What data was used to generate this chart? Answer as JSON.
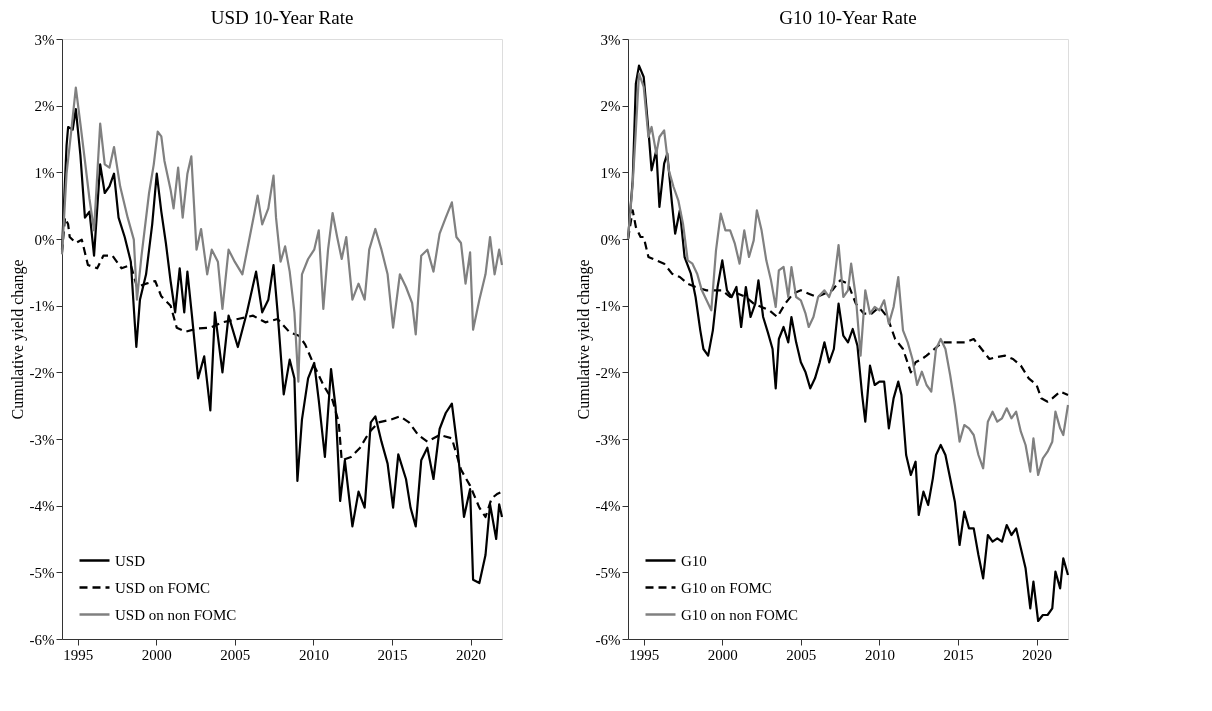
{
  "chart_data": [
    {
      "type": "line",
      "title": "USD 10-Year Rate",
      "ylabel": "Cumulative yield change",
      "xlim": [
        1994,
        2022
      ],
      "xticks": [
        1995,
        2000,
        2005,
        2010,
        2015,
        2020
      ],
      "ylim": [
        -6,
        3
      ],
      "yticks": [
        {
          "value": -6,
          "label": "-6%"
        },
        {
          "value": -5,
          "label": "-5%"
        },
        {
          "value": -4,
          "label": "-4%"
        },
        {
          "value": -3,
          "label": "-3%"
        },
        {
          "value": -2,
          "label": "-2%"
        },
        {
          "value": -1,
          "label": "-1%"
        },
        {
          "value": 0,
          "label": "0%"
        },
        {
          "value": 1,
          "label": "1%"
        },
        {
          "value": 2,
          "label": "2%"
        },
        {
          "value": 3,
          "label": "3%"
        }
      ],
      "grid": false,
      "legend": "bottom left",
      "marker": "none",
      "series": [
        {
          "name": "USD",
          "color": "#000000",
          "line_style": "solid",
          "x": [
            1994.0,
            1994.29,
            1994.39,
            1994.68,
            1994.88,
            1995.17,
            1995.46,
            1995.75,
            1996.04,
            1996.43,
            1996.72,
            1997.02,
            1997.31,
            1997.6,
            1997.99,
            1998.38,
            1998.73,
            1998.96,
            1999.35,
            1999.74,
            2000.03,
            2000.32,
            2000.61,
            2000.91,
            2001.2,
            2001.49,
            2001.78,
            2001.98,
            2002.27,
            2002.66,
            2003.05,
            2003.44,
            2003.73,
            2004.21,
            2004.6,
            2005.19,
            2005.77,
            2006.35,
            2006.74,
            2007.13,
            2007.46,
            2007.72,
            2008.11,
            2008.49,
            2008.79,
            2008.98,
            2009.27,
            2009.66,
            2010.05,
            2010.34,
            2010.73,
            2011.12,
            2011.41,
            2011.7,
            2012.0,
            2012.48,
            2012.87,
            2013.26,
            2013.65,
            2013.94,
            2014.33,
            2014.72,
            2015.07,
            2015.4,
            2015.89,
            2016.18,
            2016.51,
            2016.86,
            2017.25,
            2017.64,
            2018.03,
            2018.42,
            2018.81,
            2019.19,
            2019.58,
            2019.97,
            2020.16,
            2020.56,
            2020.95,
            2021.24,
            2021.63,
            2021.82,
            2022.0
          ],
          "values": [
            -0.16,
            1.4,
            1.68,
            1.64,
            1.95,
            1.26,
            0.32,
            0.41,
            -0.25,
            1.12,
            0.69,
            0.79,
            0.98,
            0.32,
            0.03,
            -0.34,
            -1.62,
            -0.91,
            -0.53,
            0.22,
            0.98,
            0.41,
            -0.06,
            -0.63,
            -1.1,
            -0.44,
            -1.1,
            -0.49,
            -1.15,
            -2.09,
            -1.76,
            -2.57,
            -1.1,
            -2.0,
            -1.15,
            -1.62,
            -1.1,
            -0.49,
            -1.1,
            -0.91,
            -0.39,
            -1.1,
            -2.33,
            -1.81,
            -2.09,
            -3.63,
            -2.71,
            -2.09,
            -1.86,
            -2.42,
            -3.27,
            -1.95,
            -2.52,
            -3.93,
            -3.32,
            -4.31,
            -3.79,
            -4.03,
            -2.75,
            -2.66,
            -3.04,
            -3.37,
            -4.03,
            -3.23,
            -3.6,
            -4.03,
            -4.31,
            -3.32,
            -3.13,
            -3.6,
            -2.85,
            -2.61,
            -2.47,
            -3.18,
            -4.17,
            -3.75,
            -5.11,
            -5.16,
            -4.74,
            -3.98,
            -4.5,
            -3.98,
            -4.17
          ]
        },
        {
          "name": "USD on FOMC",
          "color": "#000000",
          "line_style": "dashed",
          "x": [
            1994.0,
            1994.19,
            1994.39,
            1994.49,
            1994.88,
            1995.26,
            1995.65,
            1996.24,
            1996.63,
            1997.21,
            1997.79,
            1998.38,
            1998.77,
            1999.35,
            1999.93,
            2000.32,
            2000.91,
            2001.3,
            2001.88,
            2002.66,
            2003.44,
            2004.21,
            2005.19,
            2006.16,
            2006.94,
            2007.72,
            2008.49,
            2009.08,
            2009.47,
            2010.05,
            2010.63,
            2011.22,
            2011.61,
            2011.8,
            2012.39,
            2012.97,
            2013.55,
            2014.14,
            2014.91,
            2015.5,
            2016.08,
            2016.67,
            2017.25,
            2018.03,
            2018.81,
            2019.39,
            2019.97,
            2020.56,
            2020.95,
            2021.34,
            2021.72,
            2022.0
          ],
          "values": [
            -0.2,
            0.32,
            0.22,
            0.03,
            -0.06,
            -0.01,
            -0.39,
            -0.44,
            -0.25,
            -0.25,
            -0.44,
            -0.39,
            -0.72,
            -0.67,
            -0.63,
            -0.86,
            -1.0,
            -1.33,
            -1.39,
            -1.34,
            -1.33,
            -1.25,
            -1.2,
            -1.15,
            -1.25,
            -1.2,
            -1.4,
            -1.45,
            -1.58,
            -1.9,
            -2.19,
            -2.42,
            -2.75,
            -3.32,
            -3.27,
            -3.13,
            -2.9,
            -2.75,
            -2.71,
            -2.66,
            -2.75,
            -2.94,
            -3.04,
            -2.94,
            -2.99,
            -3.46,
            -3.7,
            -4.03,
            -4.17,
            -3.89,
            -3.82,
            -3.79
          ]
        },
        {
          "name": "USD on non FOMC",
          "color": "#808080",
          "line_style": "solid",
          "x": [
            1994.0,
            1994.29,
            1994.58,
            1994.88,
            1995.17,
            1995.46,
            1995.75,
            1996.04,
            1996.43,
            1996.72,
            1997.02,
            1997.31,
            1997.7,
            1998.18,
            1998.57,
            1998.77,
            1999.06,
            1999.54,
            1999.84,
            2000.09,
            2000.32,
            2000.52,
            2000.91,
            2001.1,
            2001.39,
            2001.68,
            2001.98,
            2002.23,
            2002.56,
            2002.85,
            2003.24,
            2003.53,
            2003.92,
            2004.21,
            2004.6,
            2004.99,
            2005.48,
            2005.87,
            2006.26,
            2006.45,
            2006.74,
            2007.13,
            2007.46,
            2007.62,
            2007.91,
            2008.2,
            2008.49,
            2008.79,
            2009.04,
            2009.27,
            2009.66,
            2010.05,
            2010.34,
            2010.63,
            2010.93,
            2011.22,
            2011.51,
            2011.8,
            2012.09,
            2012.48,
            2012.87,
            2013.26,
            2013.55,
            2013.94,
            2014.33,
            2014.72,
            2015.07,
            2015.5,
            2015.89,
            2016.28,
            2016.51,
            2016.86,
            2017.25,
            2017.64,
            2018.03,
            2018.42,
            2018.81,
            2019.1,
            2019.39,
            2019.68,
            2019.97,
            2020.16,
            2020.56,
            2020.95,
            2021.24,
            2021.53,
            2021.82,
            2022.0
          ],
          "values": [
            -0.23,
            0.98,
            1.6,
            2.27,
            1.73,
            1.17,
            0.6,
            0.13,
            1.73,
            1.12,
            1.07,
            1.38,
            0.79,
            0.32,
            -0.01,
            -0.91,
            -0.25,
            0.69,
            1.12,
            1.61,
            1.54,
            1.17,
            0.74,
            0.46,
            1.07,
            0.32,
            0.98,
            1.24,
            -0.16,
            0.15,
            -0.53,
            -0.16,
            -0.34,
            -1.05,
            -0.16,
            -0.34,
            -0.53,
            -0.06,
            0.41,
            0.65,
            0.22,
            0.46,
            0.95,
            0.32,
            -0.34,
            -0.11,
            -0.49,
            -1.1,
            -2.14,
            -0.53,
            -0.3,
            -0.16,
            0.13,
            -1.05,
            -0.16,
            0.39,
            0.03,
            -0.3,
            0.03,
            -0.91,
            -0.67,
            -0.91,
            -0.16,
            0.15,
            -0.16,
            -0.53,
            -1.33,
            -0.53,
            -0.72,
            -0.96,
            -1.43,
            -0.25,
            -0.16,
            -0.49,
            0.08,
            0.32,
            0.55,
            0.03,
            -0.06,
            -0.67,
            -0.2,
            -1.36,
            -0.91,
            -0.53,
            0.03,
            -0.53,
            -0.16,
            -0.39
          ]
        }
      ]
    },
    {
      "type": "line",
      "title": "G10 10-Year Rate",
      "ylabel": "Cumulative yield change",
      "xlim": [
        1994,
        2022
      ],
      "xticks": [
        1995,
        2000,
        2005,
        2010,
        2015,
        2020
      ],
      "ylim": [
        -6,
        3
      ],
      "yticks": [
        {
          "value": -6,
          "label": "-6%"
        },
        {
          "value": -5,
          "label": "-5%"
        },
        {
          "value": -4,
          "label": "-4%"
        },
        {
          "value": -3,
          "label": "-3%"
        },
        {
          "value": -2,
          "label": "-2%"
        },
        {
          "value": -1,
          "label": "-1%"
        },
        {
          "value": 0,
          "label": "0%"
        },
        {
          "value": 1,
          "label": "1%"
        },
        {
          "value": 2,
          "label": "2%"
        },
        {
          "value": 3,
          "label": "3%"
        }
      ],
      "grid": false,
      "legend": "bottom left",
      "marker": "none",
      "series": [
        {
          "name": "G10",
          "color": "#000000",
          "line_style": "solid",
          "x": [
            1994.0,
            1994.3,
            1994.5,
            1994.7,
            1995.0,
            1995.3,
            1995.5,
            1995.8,
            1996.0,
            1996.3,
            1996.5,
            1996.8,
            1997.0,
            1997.3,
            1997.6,
            1998.0,
            1998.3,
            1998.6,
            1998.8,
            1999.1,
            1999.4,
            1999.7,
            2000.0,
            2000.3,
            2000.6,
            2000.9,
            2001.2,
            2001.5,
            2001.8,
            2002.1,
            2002.3,
            2002.6,
            2002.9,
            2003.2,
            2003.4,
            2003.6,
            2003.9,
            2004.2,
            2004.4,
            2004.7,
            2005.0,
            2005.3,
            2005.6,
            2005.9,
            2006.2,
            2006.5,
            2006.8,
            2007.1,
            2007.4,
            2007.7,
            2008.0,
            2008.3,
            2008.6,
            2008.9,
            2009.1,
            2009.4,
            2009.7,
            2010.0,
            2010.3,
            2010.6,
            2010.9,
            2011.2,
            2011.4,
            2011.7,
            2012.0,
            2012.3,
            2012.5,
            2012.8,
            2013.1,
            2013.4,
            2013.6,
            2013.9,
            2014.2,
            2014.5,
            2014.8,
            2015.1,
            2015.4,
            2015.7,
            2016.0,
            2016.3,
            2016.6,
            2016.9,
            2017.2,
            2017.5,
            2017.8,
            2018.1,
            2018.4,
            2018.7,
            2019.0,
            2019.3,
            2019.6,
            2019.8,
            2020.1,
            2020.4,
            2020.7,
            2021.0,
            2021.2,
            2021.5,
            2021.7,
            2022.0
          ],
          "values": [
            0.0,
            0.88,
            2.33,
            2.6,
            2.43,
            1.63,
            1.03,
            1.33,
            0.48,
            1.13,
            1.28,
            0.53,
            0.08,
            0.43,
            -0.27,
            -0.52,
            -0.87,
            -1.37,
            -1.65,
            -1.75,
            -1.37,
            -0.72,
            -0.32,
            -0.77,
            -0.87,
            -0.72,
            -1.32,
            -0.72,
            -1.17,
            -0.97,
            -0.62,
            -1.17,
            -1.4,
            -1.65,
            -2.24,
            -1.5,
            -1.32,
            -1.55,
            -1.17,
            -1.55,
            -1.85,
            -2.0,
            -2.24,
            -2.09,
            -1.85,
            -1.55,
            -1.85,
            -1.65,
            -0.97,
            -1.45,
            -1.55,
            -1.35,
            -1.6,
            -2.34,
            -2.74,
            -1.9,
            -2.19,
            -2.14,
            -2.14,
            -2.84,
            -2.39,
            -2.14,
            -2.34,
            -3.24,
            -3.54,
            -3.34,
            -4.14,
            -3.79,
            -3.99,
            -3.59,
            -3.24,
            -3.09,
            -3.24,
            -3.59,
            -3.94,
            -4.59,
            -4.09,
            -4.34,
            -4.34,
            -4.74,
            -5.09,
            -4.44,
            -4.54,
            -4.49,
            -4.54,
            -4.29,
            -4.44,
            -4.34,
            -4.64,
            -4.94,
            -5.54,
            -5.14,
            -5.73,
            -5.64,
            -5.64,
            -5.54,
            -4.99,
            -5.24,
            -4.79,
            -5.04
          ]
        },
        {
          "name": "G10 on FOMC",
          "color": "#000000",
          "line_style": "dashed",
          "x": [
            1994.0,
            1994.3,
            1994.5,
            1994.8,
            1995.0,
            1995.3,
            1995.8,
            1996.3,
            1996.8,
            1997.3,
            1997.8,
            1998.3,
            1999.0,
            1999.5,
            2000.0,
            2000.5,
            2001.0,
            2001.5,
            2002.0,
            2002.5,
            2003.0,
            2003.5,
            2004.0,
            2004.5,
            2005.0,
            2005.5,
            2006.0,
            2006.5,
            2007.0,
            2007.5,
            2008.0,
            2008.5,
            2009.0,
            2009.5,
            2010.0,
            2010.5,
            2011.0,
            2011.5,
            2012.0,
            2012.3,
            2012.7,
            2013.0,
            2013.5,
            2014.0,
            2014.5,
            2015.0,
            2015.5,
            2016.0,
            2016.5,
            2017.0,
            2017.5,
            2018.0,
            2018.5,
            2019.0,
            2019.5,
            2020.0,
            2020.3,
            2020.7,
            2021.0,
            2021.5,
            2022.0
          ],
          "values": [
            0.0,
            0.43,
            0.18,
            0.03,
            0.03,
            -0.27,
            -0.32,
            -0.37,
            -0.52,
            -0.57,
            -0.67,
            -0.72,
            -0.77,
            -0.77,
            -0.77,
            -0.87,
            -0.82,
            -0.87,
            -0.97,
            -1.02,
            -1.07,
            -1.17,
            -0.97,
            -0.82,
            -0.77,
            -0.82,
            -0.87,
            -0.82,
            -0.77,
            -0.62,
            -0.67,
            -0.97,
            -1.12,
            -1.12,
            -1.02,
            -1.17,
            -1.5,
            -1.65,
            -2.0,
            -1.85,
            -1.8,
            -1.75,
            -1.65,
            -1.55,
            -1.55,
            -1.55,
            -1.55,
            -1.5,
            -1.65,
            -1.8,
            -1.77,
            -1.75,
            -1.8,
            -1.9,
            -2.09,
            -2.19,
            -2.39,
            -2.44,
            -2.39,
            -2.29,
            -2.34
          ]
        },
        {
          "name": "G10 on non FOMC",
          "color": "#808080",
          "line_style": "solid",
          "x": [
            1994.0,
            1994.3,
            1994.5,
            1994.7,
            1995.0,
            1995.3,
            1995.5,
            1995.8,
            1996.0,
            1996.3,
            1996.6,
            1996.9,
            1997.2,
            1997.5,
            1997.8,
            1998.1,
            1998.4,
            1998.7,
            1999.0,
            1999.3,
            1999.6,
            1999.9,
            2000.2,
            2000.5,
            2000.8,
            2001.1,
            2001.4,
            2001.7,
            2002.0,
            2002.2,
            2002.5,
            2002.8,
            2003.1,
            2003.4,
            2003.6,
            2003.9,
            2004.2,
            2004.4,
            2004.7,
            2005.0,
            2005.3,
            2005.5,
            2005.8,
            2006.1,
            2006.5,
            2006.8,
            2007.1,
            2007.4,
            2007.7,
            2008.0,
            2008.2,
            2008.5,
            2008.8,
            2009.1,
            2009.4,
            2009.7,
            2010.0,
            2010.3,
            2010.6,
            2010.9,
            2011.2,
            2011.5,
            2011.8,
            2012.1,
            2012.4,
            2012.7,
            2013.0,
            2013.3,
            2013.6,
            2013.9,
            2014.2,
            2014.5,
            2014.8,
            2015.1,
            2015.4,
            2015.7,
            2016.0,
            2016.3,
            2016.6,
            2016.9,
            2017.2,
            2017.5,
            2017.8,
            2018.1,
            2018.4,
            2018.7,
            2019.0,
            2019.3,
            2019.6,
            2019.8,
            2020.1,
            2020.4,
            2020.7,
            2021.0,
            2021.2,
            2021.5,
            2021.7,
            2022.0
          ],
          "values": [
            0.0,
            0.83,
            1.63,
            2.48,
            2.28,
            1.53,
            1.68,
            1.28,
            1.53,
            1.63,
            1.03,
            0.78,
            0.58,
            0.23,
            -0.32,
            -0.37,
            -0.52,
            -0.77,
            -0.92,
            -1.07,
            -0.17,
            0.38,
            0.13,
            0.13,
            -0.07,
            -0.37,
            0.13,
            -0.27,
            -0.02,
            0.43,
            0.13,
            -0.32,
            -0.62,
            -1.02,
            -0.47,
            -0.42,
            -0.87,
            -0.42,
            -0.87,
            -0.92,
            -1.12,
            -1.32,
            -1.17,
            -0.87,
            -0.77,
            -0.87,
            -0.67,
            -0.09,
            -0.87,
            -0.77,
            -0.37,
            -0.87,
            -1.75,
            -0.77,
            -1.12,
            -1.02,
            -1.07,
            -0.92,
            -1.27,
            -1.02,
            -0.57,
            -1.37,
            -1.55,
            -1.8,
            -2.19,
            -1.99,
            -2.19,
            -2.29,
            -1.65,
            -1.5,
            -1.65,
            -2.04,
            -2.49,
            -3.04,
            -2.79,
            -2.84,
            -2.94,
            -3.24,
            -3.44,
            -2.74,
            -2.59,
            -2.74,
            -2.69,
            -2.54,
            -2.69,
            -2.59,
            -2.89,
            -3.09,
            -3.49,
            -2.99,
            -3.54,
            -3.29,
            -3.19,
            -3.04,
            -2.59,
            -2.84,
            -2.94,
            -2.49
          ]
        }
      ]
    }
  ]
}
